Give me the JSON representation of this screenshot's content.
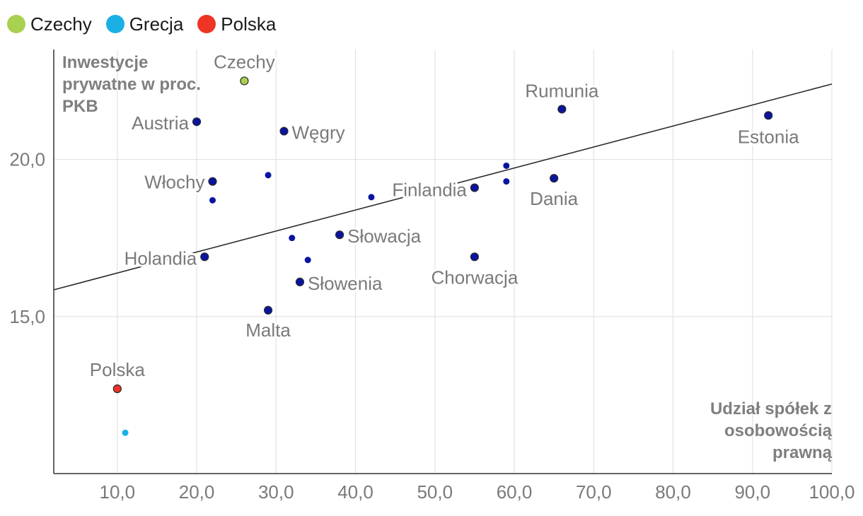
{
  "legend": [
    {
      "label": "Czechy",
      "color": "#a8d14f"
    },
    {
      "label": "Grecja",
      "color": "#1ab0e6"
    },
    {
      "label": "Polska",
      "color": "#ee3424"
    }
  ],
  "chart_data": {
    "type": "scatter",
    "ylabel": "Inwestycje prywatne w proc. PKB",
    "xlabel": "Udział spółek z osobowością prawną",
    "xlim": [
      2.0,
      100.0
    ],
    "ylim": [
      10.0,
      23.5
    ],
    "xticks": [
      10,
      20,
      30,
      40,
      50,
      60,
      70,
      80,
      90,
      100
    ],
    "xtick_labels": [
      "10,0",
      "20,0",
      "30,0",
      "40,0",
      "50,0",
      "60,0",
      "70,0",
      "80,0",
      "90,0",
      "100,0"
    ],
    "yticks": [
      15,
      20
    ],
    "ytick_labels": [
      "15,0",
      "20,0"
    ],
    "grid": true,
    "default_color": "#0a14a0",
    "points": [
      {
        "x": 26,
        "y": 22.5,
        "label": "Czechy",
        "color": "#a8d14f"
      },
      {
        "x": 10,
        "y": 12.7,
        "label": "Polska",
        "color": "#ee3424"
      },
      {
        "x": 11,
        "y": 11.3,
        "label": "",
        "color": "#1ab0e6"
      },
      {
        "x": 20,
        "y": 21.2,
        "label": "Austria"
      },
      {
        "x": 31,
        "y": 20.9,
        "label": "Węgry"
      },
      {
        "x": 22,
        "y": 19.3,
        "label": "Włochy"
      },
      {
        "x": 22,
        "y": 18.7,
        "label": ""
      },
      {
        "x": 29,
        "y": 19.5,
        "label": ""
      },
      {
        "x": 21,
        "y": 16.9,
        "label": "Holandia"
      },
      {
        "x": 29,
        "y": 15.2,
        "label": "Malta"
      },
      {
        "x": 32,
        "y": 17.5,
        "label": ""
      },
      {
        "x": 34,
        "y": 16.8,
        "label": ""
      },
      {
        "x": 33,
        "y": 16.1,
        "label": "Słowenia"
      },
      {
        "x": 38,
        "y": 17.6,
        "label": "Słowacja"
      },
      {
        "x": 42,
        "y": 18.8,
        "label": ""
      },
      {
        "x": 55,
        "y": 19.1,
        "label": "Finlandia"
      },
      {
        "x": 55,
        "y": 16.9,
        "label": "Chorwacja"
      },
      {
        "x": 59,
        "y": 19.8,
        "label": ""
      },
      {
        "x": 59,
        "y": 19.3,
        "label": ""
      },
      {
        "x": 65,
        "y": 19.4,
        "label": "Dania"
      },
      {
        "x": 66,
        "y": 21.6,
        "label": "Rumunia"
      },
      {
        "x": 92,
        "y": 21.4,
        "label": "Estonia"
      }
    ],
    "trendline": {
      "x1": 2.0,
      "y1": 15.85,
      "x2": 100.0,
      "y2": 22.4
    }
  }
}
